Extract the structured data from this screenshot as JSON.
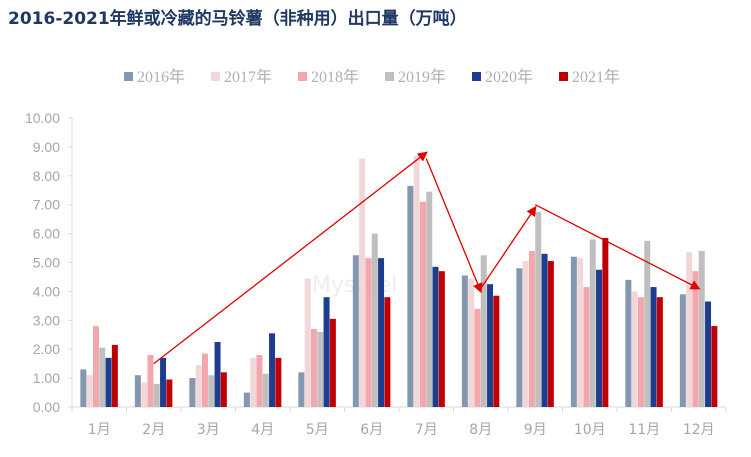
{
  "title": "2016-2021年鲜或冷藏的马铃薯（非种用）出口量（万吨）",
  "watermark": "Mysteel",
  "chart_data": {
    "type": "bar",
    "title": "2016-2021年鲜或冷藏的马铃薯（非种用）出口量（万吨）",
    "categories": [
      "1月",
      "2月",
      "3月",
      "4月",
      "5月",
      "6月",
      "7月",
      "8月",
      "9月",
      "10月",
      "11月",
      "12月"
    ],
    "ylim": [
      0,
      10
    ],
    "yticks": [
      "0.00",
      "1.00",
      "2.00",
      "3.00",
      "4.00",
      "5.00",
      "6.00",
      "7.00",
      "8.00",
      "9.00",
      "10.00"
    ],
    "grid": false,
    "legend_position": "top",
    "series": [
      {
        "name": "2016年",
        "color": "#8497b0",
        "values": [
          1.3,
          1.1,
          1.0,
          0.5,
          1.2,
          5.25,
          7.65,
          4.55,
          4.8,
          5.2,
          4.4,
          3.9
        ]
      },
      {
        "name": "2017年",
        "color": "#f2d7d9",
        "values": [
          1.1,
          0.85,
          1.45,
          1.7,
          4.45,
          8.6,
          8.7,
          4.45,
          5.05,
          5.15,
          4.0,
          5.35
        ]
      },
      {
        "name": "2018年",
        "color": "#f4a6ad",
        "values": [
          2.8,
          1.8,
          1.85,
          1.8,
          2.7,
          5.15,
          7.1,
          3.4,
          5.4,
          4.15,
          3.8,
          4.7
        ]
      },
      {
        "name": "2019年",
        "color": "#bfbfbf",
        "values": [
          2.05,
          0.8,
          1.1,
          1.15,
          2.6,
          6.0,
          7.45,
          5.25,
          6.75,
          5.8,
          5.75,
          5.4
        ]
      },
      {
        "name": "2020年",
        "color": "#1f3d8f",
        "values": [
          1.7,
          1.7,
          2.25,
          2.55,
          3.8,
          5.15,
          4.85,
          4.25,
          5.3,
          4.75,
          4.15,
          3.65
        ]
      },
      {
        "name": "2021年",
        "color": "#c00000",
        "values": [
          2.15,
          0.95,
          1.2,
          1.7,
          3.05,
          3.8,
          4.7,
          3.85,
          5.05,
          5.85,
          3.8,
          2.8
        ]
      }
    ],
    "trend_arrows": [
      {
        "from": [
          "2月",
          1.5
        ],
        "to": [
          "7月",
          8.8
        ]
      },
      {
        "from": [
          "7月",
          8.6
        ],
        "to": [
          "8月",
          4.0
        ]
      },
      {
        "from": [
          "8月",
          4.1
        ],
        "to": [
          "9月",
          6.9
        ]
      },
      {
        "from": [
          "9月",
          7.0
        ],
        "to": [
          "12月",
          4.1
        ]
      }
    ]
  }
}
